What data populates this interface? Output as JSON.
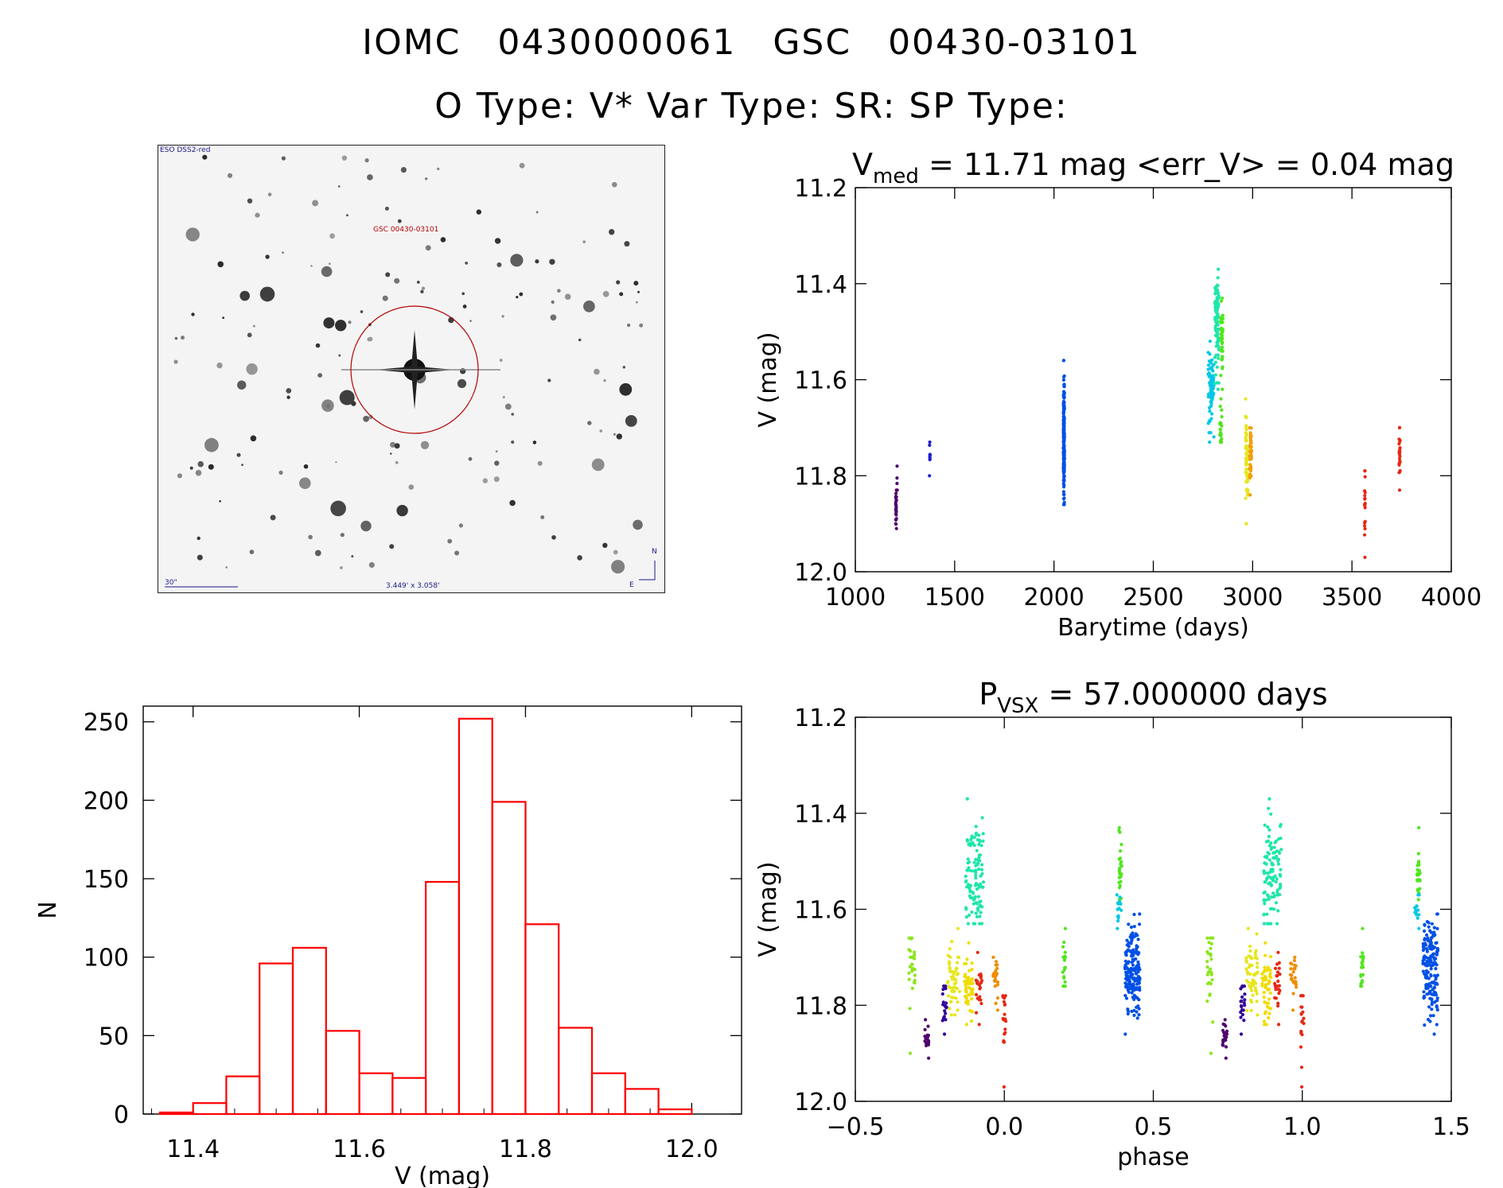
{
  "header": {
    "line1_object": "IOMC 0430000061",
    "line1_gsc": "GSC 00430-03101",
    "line2": "O Type: V*  Var Type: SR:  SP Type:"
  },
  "sky_image": {
    "survey": "ESO DSS2-red",
    "target_label": "GSC 00430-03101",
    "scale_label": "30\"",
    "fov_label": "3.449' x 3.058'",
    "north": "N",
    "east": "E"
  },
  "colors": {
    "hist": "#ff0000",
    "axis": "#000000",
    "circle": "#b40000"
  },
  "chart_data": [
    {
      "id": "lightcurve",
      "type": "scatter",
      "title_main": "V",
      "title_sub": "med",
      "title_rest": " = 11.71 mag <err_V> = 0.04 mag",
      "xlabel": "Barytime (days)",
      "ylabel": "V (mag)",
      "xlim": [
        1000,
        4000
      ],
      "ylim": [
        11.2,
        12.0
      ],
      "y_inverted": true,
      "xticks": [
        "1000",
        "1500",
        "2000",
        "2500",
        "3000",
        "3500",
        "4000"
      ],
      "yticks": [
        "11.2",
        "11.4",
        "11.6",
        "11.8",
        "12.0"
      ],
      "groups": [
        {
          "x": 1205,
          "xw": 6,
          "y_min": 11.83,
          "y_max": 11.91,
          "y_mid": 11.87,
          "n": 25,
          "color": "#50006e"
        },
        {
          "x": 1210,
          "xw": 4,
          "y_min": 11.78,
          "y_max": 11.83,
          "y_mid": 11.8,
          "n": 4,
          "color": "#50006e"
        },
        {
          "x": 1375,
          "xw": 4,
          "y_min": 11.73,
          "y_max": 11.8,
          "y_mid": 11.76,
          "n": 10,
          "color": "#1e1ecd"
        },
        {
          "x": 2050,
          "xw": 5,
          "y_min": 11.56,
          "y_max": 11.86,
          "y_mid": 11.72,
          "n": 220,
          "color": "#0050e6"
        },
        {
          "x": 2790,
          "xw": 30,
          "y_min": 11.52,
          "y_max": 11.73,
          "y_mid": 11.62,
          "n": 70,
          "color": "#00c8e6"
        },
        {
          "x": 2820,
          "xw": 20,
          "y_min": 11.37,
          "y_max": 11.62,
          "y_mid": 11.48,
          "n": 90,
          "color": "#1ee6aa"
        },
        {
          "x": 2845,
          "xw": 12,
          "y_min": 11.43,
          "y_max": 11.62,
          "y_mid": 11.52,
          "n": 40,
          "color": "#50e61e"
        },
        {
          "x": 2840,
          "xw": 10,
          "y_min": 11.64,
          "y_max": 11.73,
          "y_mid": 11.7,
          "n": 25,
          "color": "#50e61e"
        },
        {
          "x": 2970,
          "xw": 12,
          "y_min": 11.64,
          "y_max": 11.9,
          "y_mid": 11.78,
          "n": 60,
          "color": "#e6e61e"
        },
        {
          "x": 2990,
          "xw": 10,
          "y_min": 11.7,
          "y_max": 11.84,
          "y_mid": 11.76,
          "n": 45,
          "color": "#f0a000"
        },
        {
          "x": 3565,
          "xw": 4,
          "y_min": 11.79,
          "y_max": 11.97,
          "y_mid": 11.85,
          "n": 20,
          "color": "#e62814"
        },
        {
          "x": 3740,
          "xw": 6,
          "y_min": 11.7,
          "y_max": 11.83,
          "y_mid": 11.75,
          "n": 25,
          "color": "#e62814"
        }
      ]
    },
    {
      "id": "histogram",
      "type": "bar",
      "title": "",
      "xlabel": "V (mag)",
      "ylabel": "N",
      "xlim": [
        11.34,
        12.06
      ],
      "ylim": [
        0,
        260
      ],
      "xticks": [
        "11.4",
        "11.6",
        "11.8",
        "12.0"
      ],
      "yticks": [
        "0",
        "50",
        "100",
        "150",
        "200",
        "250"
      ],
      "bin_width": 0.04,
      "bin_left_edges": [
        11.36,
        11.4,
        11.44,
        11.48,
        11.52,
        11.56,
        11.6,
        11.64,
        11.68,
        11.72,
        11.76,
        11.8,
        11.84,
        11.88,
        11.92,
        11.96
      ],
      "values": [
        1,
        7,
        24,
        96,
        106,
        53,
        26,
        23,
        148,
        252,
        199,
        121,
        55,
        26,
        16,
        3
      ]
    },
    {
      "id": "phased",
      "type": "scatter",
      "title_main": "P",
      "title_sub": "VSX",
      "title_rest": " = 57.000000 days",
      "xlabel": "phase",
      "ylabel": "V (mag)",
      "xlim": [
        -0.5,
        1.5
      ],
      "ylim": [
        11.2,
        12.0
      ],
      "y_inverted": true,
      "xticks": [
        "−0.5",
        "0.0",
        "0.5",
        "1.0",
        "1.5"
      ],
      "yticks": [
        "11.2",
        "11.4",
        "11.6",
        "11.8",
        "12.0"
      ],
      "groups": [
        {
          "x": -0.31,
          "xw": 0.02,
          "y_min": 11.66,
          "y_max": 11.9,
          "y_mid": 11.72,
          "n": 30,
          "color": "#8ce61e"
        },
        {
          "x": -0.26,
          "xw": 0.015,
          "y_min": 11.83,
          "y_max": 11.91,
          "y_mid": 11.87,
          "n": 20,
          "color": "#50006e"
        },
        {
          "x": -0.2,
          "xw": 0.015,
          "y_min": 11.76,
          "y_max": 11.86,
          "y_mid": 11.8,
          "n": 20,
          "color": "#32009b"
        },
        {
          "x": -0.17,
          "xw": 0.04,
          "y_min": 11.64,
          "y_max": 11.82,
          "y_mid": 11.74,
          "n": 55,
          "color": "#e6e61e"
        },
        {
          "x": -0.12,
          "xw": 0.03,
          "y_min": 11.67,
          "y_max": 11.84,
          "y_mid": 11.76,
          "n": 50,
          "color": "#f0dc00"
        },
        {
          "x": -0.1,
          "xw": 0.06,
          "y_min": 11.37,
          "y_max": 11.63,
          "y_mid": 11.53,
          "n": 110,
          "color": "#1ee6aa"
        },
        {
          "x": -0.085,
          "xw": 0.02,
          "y_min": 11.69,
          "y_max": 11.84,
          "y_mid": 11.76,
          "n": 25,
          "color": "#e62814"
        },
        {
          "x": -0.03,
          "xw": 0.02,
          "y_min": 11.7,
          "y_max": 11.81,
          "y_mid": 11.74,
          "n": 25,
          "color": "#f08c00"
        },
        {
          "x": 0.0,
          "xw": 0.01,
          "y_min": 11.78,
          "y_max": 11.97,
          "y_mid": 11.82,
          "n": 20,
          "color": "#e62814"
        },
        {
          "x": 0.2,
          "xw": 0.01,
          "y_min": 11.64,
          "y_max": 11.76,
          "y_mid": 11.72,
          "n": 20,
          "color": "#50e61e"
        },
        {
          "x": 0.39,
          "xw": 0.01,
          "y_min": 11.43,
          "y_max": 11.58,
          "y_mid": 11.52,
          "n": 25,
          "color": "#50e61e"
        },
        {
          "x": 0.385,
          "xw": 0.015,
          "y_min": 11.57,
          "y_max": 11.64,
          "y_mid": 11.6,
          "n": 15,
          "color": "#00c8e6"
        },
        {
          "x": 0.43,
          "xw": 0.05,
          "y_min": 11.61,
          "y_max": 11.86,
          "y_mid": 11.72,
          "n": 170,
          "color": "#0050e6"
        },
        {
          "x": 0.69,
          "xw": 0.02,
          "y_min": 11.66,
          "y_max": 11.9,
          "y_mid": 11.72,
          "n": 30,
          "color": "#8ce61e"
        },
        {
          "x": 0.74,
          "xw": 0.015,
          "y_min": 11.83,
          "y_max": 11.91,
          "y_mid": 11.87,
          "n": 20,
          "color": "#50006e"
        },
        {
          "x": 0.8,
          "xw": 0.015,
          "y_min": 11.76,
          "y_max": 11.86,
          "y_mid": 11.8,
          "n": 20,
          "color": "#32009b"
        },
        {
          "x": 0.83,
          "xw": 0.04,
          "y_min": 11.64,
          "y_max": 11.82,
          "y_mid": 11.74,
          "n": 55,
          "color": "#e6e61e"
        },
        {
          "x": 0.88,
          "xw": 0.03,
          "y_min": 11.67,
          "y_max": 11.84,
          "y_mid": 11.76,
          "n": 50,
          "color": "#f0dc00"
        },
        {
          "x": 0.9,
          "xw": 0.06,
          "y_min": 11.37,
          "y_max": 11.63,
          "y_mid": 11.53,
          "n": 110,
          "color": "#1ee6aa"
        },
        {
          "x": 0.915,
          "xw": 0.02,
          "y_min": 11.69,
          "y_max": 11.84,
          "y_mid": 11.76,
          "n": 25,
          "color": "#e62814"
        },
        {
          "x": 0.97,
          "xw": 0.02,
          "y_min": 11.7,
          "y_max": 11.81,
          "y_mid": 11.74,
          "n": 25,
          "color": "#f08c00"
        },
        {
          "x": 1.0,
          "xw": 0.01,
          "y_min": 11.78,
          "y_max": 11.97,
          "y_mid": 11.82,
          "n": 20,
          "color": "#e62814"
        },
        {
          "x": 1.2,
          "xw": 0.01,
          "y_min": 11.64,
          "y_max": 11.76,
          "y_mid": 11.72,
          "n": 20,
          "color": "#50e61e"
        },
        {
          "x": 1.39,
          "xw": 0.01,
          "y_min": 11.43,
          "y_max": 11.58,
          "y_mid": 11.52,
          "n": 25,
          "color": "#50e61e"
        },
        {
          "x": 1.385,
          "xw": 0.015,
          "y_min": 11.57,
          "y_max": 11.64,
          "y_mid": 11.6,
          "n": 15,
          "color": "#00c8e6"
        },
        {
          "x": 1.43,
          "xw": 0.05,
          "y_min": 11.61,
          "y_max": 11.86,
          "y_mid": 11.72,
          "n": 170,
          "color": "#0050e6"
        }
      ]
    }
  ]
}
